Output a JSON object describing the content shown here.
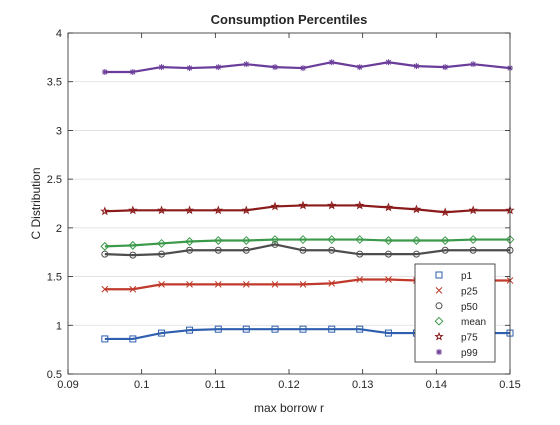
{
  "chart_data": {
    "type": "line",
    "title": "Consumption Percentiles",
    "xlabel": "max borrow r",
    "ylabel": "C Distribution",
    "xlim": [
      0.09,
      0.15
    ],
    "ylim": [
      0.5,
      4
    ],
    "xticks": [
      "0.09",
      "0.1",
      "0.11",
      "0.12",
      "0.13",
      "0.14",
      "0.15"
    ],
    "yticks": [
      "0.5",
      "1",
      "1.5",
      "2",
      "2.5",
      "3",
      "3.5",
      "4"
    ],
    "grid": "y-major",
    "legend_position": "bottom-right",
    "x": [
      0.095,
      0.0988,
      0.1027,
      0.1065,
      0.1104,
      0.1142,
      0.1181,
      0.1219,
      0.1258,
      0.1296,
      0.1335,
      0.1373,
      0.1412,
      0.145,
      0.15
    ],
    "series": [
      {
        "name": "p1",
        "color": "#2f5fae",
        "marker": "square",
        "values": [
          0.86,
          0.86,
          0.92,
          0.95,
          0.96,
          0.96,
          0.96,
          0.96,
          0.96,
          0.96,
          0.92,
          0.92,
          0.92,
          0.92,
          0.92
        ]
      },
      {
        "name": "p25",
        "color": "#c0392b",
        "marker": "x",
        "values": [
          1.37,
          1.37,
          1.42,
          1.42,
          1.42,
          1.42,
          1.42,
          1.42,
          1.43,
          1.47,
          1.47,
          1.46,
          1.46,
          1.46,
          1.46
        ]
      },
      {
        "name": "p50",
        "color": "#4d4d4d",
        "marker": "circle",
        "values": [
          1.73,
          1.72,
          1.73,
          1.77,
          1.77,
          1.77,
          1.83,
          1.77,
          1.77,
          1.73,
          1.73,
          1.73,
          1.77,
          1.77,
          1.77
        ]
      },
      {
        "name": "mean",
        "color": "#3a9a4a",
        "marker": "diamond",
        "values": [
          1.81,
          1.82,
          1.84,
          1.86,
          1.87,
          1.87,
          1.88,
          1.88,
          1.88,
          1.88,
          1.87,
          1.87,
          1.87,
          1.88,
          1.88
        ]
      },
      {
        "name": "p75",
        "color": "#8b1a1a",
        "marker": "pentagram",
        "values": [
          2.17,
          2.18,
          2.18,
          2.18,
          2.18,
          2.18,
          2.22,
          2.23,
          2.23,
          2.23,
          2.21,
          2.19,
          2.16,
          2.18,
          2.18
        ]
      },
      {
        "name": "p99",
        "color": "#6a3d9a",
        "marker": "asterisk",
        "values": [
          3.6,
          3.6,
          3.65,
          3.64,
          3.65,
          3.68,
          3.65,
          3.64,
          3.7,
          3.65,
          3.7,
          3.66,
          3.65,
          3.68,
          3.64
        ]
      }
    ]
  }
}
